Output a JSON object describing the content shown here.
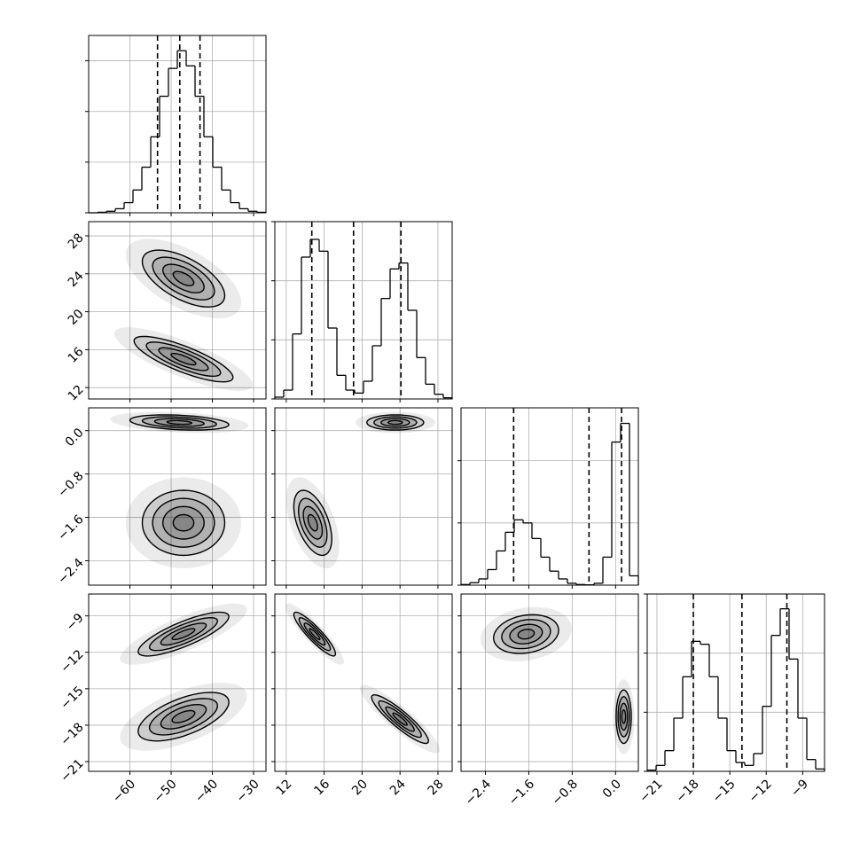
{
  "chart_data": {
    "type": "corner",
    "color": "#000000",
    "grid": true,
    "levels": [
      0.5,
      1,
      1.5,
      2
    ],
    "variables": [
      {
        "lim": [
          -70,
          -27
        ],
        "ticks": [
          {
            "value": -60,
            "label": "−60"
          },
          {
            "value": -50,
            "label": "−50"
          },
          {
            "value": -40,
            "label": "−40"
          },
          {
            "value": -30,
            "label": "−30"
          }
        ],
        "bins": [
          -70,
          -67.85,
          -65.7,
          -63.55,
          -61.4,
          -59.25,
          -57.1,
          -54.95,
          -52.8,
          -50.65,
          -48.5,
          -46.35,
          -44.2,
          -42.05,
          -39.9,
          -37.75,
          -35.6,
          -33.45,
          -31.3,
          -29.15,
          -27
        ],
        "counts": [
          0,
          10,
          30,
          80,
          200,
          450,
          900,
          1500,
          2300,
          2850,
          3200,
          2900,
          2300,
          1500,
          900,
          450,
          200,
          80,
          30,
          10
        ],
        "hist_ylim": [
          0,
          3500
        ],
        "hist_yticks": [
          0,
          1000,
          2000,
          3000
        ],
        "quantiles": [
          -53.3,
          -47.9,
          -43
        ]
      },
      {
        "lim": [
          10.8,
          29.5
        ],
        "ticks": [
          12,
          16,
          20,
          24,
          28
        ],
        "bins": [
          10.8,
          11.735,
          12.67,
          13.605,
          14.54,
          15.475,
          16.41,
          17.345,
          18.28,
          19.215,
          20.15,
          21.085,
          22.02,
          22.955,
          23.89,
          24.825,
          25.76,
          26.695,
          27.63,
          28.565,
          29.5
        ],
        "counts": [
          30,
          150,
          1100,
          2400,
          2700,
          2500,
          1200,
          400,
          150,
          100,
          300,
          900,
          1700,
          2200,
          2300,
          1500,
          700,
          250,
          80,
          20
        ],
        "hist_ylim": [
          0,
          3000
        ],
        "hist_yticks": [
          0,
          1000,
          2000,
          3000
        ],
        "quantiles": [
          14.7,
          19.1,
          24.1
        ]
      },
      {
        "lim": [
          -2.85,
          0.42
        ],
        "ticks": [
          {
            "value": -2.4,
            "label": "−2.4"
          },
          {
            "value": -1.6,
            "label": "−1.6"
          },
          {
            "value": -0.8,
            "label": "−0.8"
          },
          {
            "value": 0,
            "label": "0.0"
          }
        ],
        "bins": [
          -2.85,
          -2.6865,
          -2.523,
          -2.3595,
          -2.196,
          -2.0325,
          -1.869,
          -1.7055,
          -1.542,
          -1.3785,
          -1.215,
          -1.0515,
          -0.888,
          -0.7245,
          -0.561,
          -0.3975,
          -0.234,
          -0.0705,
          0.093,
          0.2565,
          0.42
        ],
        "counts": [
          20,
          80,
          200,
          500,
          1100,
          1700,
          2100,
          2000,
          1500,
          900,
          450,
          200,
          60,
          20,
          10,
          60,
          900,
          4600,
          5200,
          300
        ],
        "hist_ylim": [
          0,
          5700
        ],
        "hist_yticks": [
          0,
          2000,
          4000
        ],
        "quantiles": [
          -1.88,
          -0.49,
          0.11
        ]
      },
      {
        "lim": [
          -21.8,
          -7.2
        ],
        "ticks": [
          {
            "value": -21,
            "label": "−21"
          },
          {
            "value": -18,
            "label": "−18"
          },
          {
            "value": -15,
            "label": "−15"
          },
          {
            "value": -12,
            "label": "−12"
          },
          {
            "value": -9,
            "label": "−9"
          }
        ],
        "bins": [
          -21.8,
          -21.07,
          -20.34,
          -19.61,
          -18.88,
          -18.15,
          -17.42,
          -16.69,
          -15.96,
          -15.23,
          -14.5,
          -13.77,
          -13.04,
          -12.31,
          -11.58,
          -10.85,
          -10.12,
          -9.39,
          -8.66,
          -7.93,
          -7.2
        ],
        "counts": [
          20,
          100,
          350,
          900,
          1600,
          2200,
          2150,
          1600,
          900,
          350,
          150,
          100,
          300,
          1100,
          2300,
          2750,
          1900,
          900,
          200,
          40
        ],
        "hist_ylim": [
          0,
          3000
        ],
        "hist_yticks": [
          0,
          1000,
          2000,
          3000
        ],
        "quantiles": [
          -18,
          -14,
          -10.3
        ]
      }
    ],
    "pairs": [
      {
        "x": 0,
        "y": 1,
        "modes": [
          {
            "x": -47,
            "y": 23.5,
            "sx": 5,
            "sy": 1.5,
            "rho": -0.6
          },
          {
            "x": -47,
            "y": 15,
            "sx": 6,
            "sy": 1.2,
            "rho": -0.8
          }
        ]
      },
      {
        "x": 0,
        "y": 2,
        "modes": [
          {
            "x": -48,
            "y": 0.15,
            "sx": 6,
            "sy": 0.07,
            "rho": -0.3
          },
          {
            "x": -47,
            "y": -1.7,
            "sx": 5,
            "sy": 0.3,
            "rho": 0
          }
        ]
      },
      {
        "x": 0,
        "y": 3,
        "modes": [
          {
            "x": -47,
            "y": -10.5,
            "sx": 5.5,
            "sy": 0.9,
            "rho": 0.8
          },
          {
            "x": -47,
            "y": -17.3,
            "sx": 5.5,
            "sy": 1,
            "rho": 0.6
          }
        ]
      },
      {
        "x": 1,
        "y": 2,
        "modes": [
          {
            "x": 23.5,
            "y": 0.15,
            "sx": 1.5,
            "sy": 0.07,
            "rho": 0
          },
          {
            "x": 14.8,
            "y": -1.7,
            "sx": 1,
            "sy": 0.3,
            "rho": -0.5
          }
        ]
      },
      {
        "x": 1,
        "y": 3,
        "modes": [
          {
            "x": 15,
            "y": -10.5,
            "sx": 1.1,
            "sy": 0.9,
            "rho": -0.9
          },
          {
            "x": 24,
            "y": -17.5,
            "sx": 1.5,
            "sy": 1,
            "rho": -0.9
          }
        ]
      },
      {
        "x": 2,
        "y": 3,
        "modes": [
          {
            "x": -1.65,
            "y": -10.5,
            "sx": 0.3,
            "sy": 0.8,
            "rho": 0.2
          },
          {
            "x": 0.15,
            "y": -17.3,
            "sx": 0.07,
            "sy": 1.1,
            "rho": 0
          }
        ]
      }
    ]
  }
}
